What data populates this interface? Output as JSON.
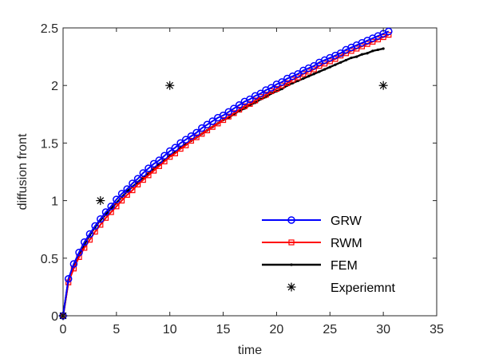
{
  "chart_data": {
    "type": "line",
    "xlabel": "time",
    "ylabel": "diffusion front",
    "xlim": [
      0,
      35
    ],
    "ylim": [
      0,
      2.5
    ],
    "xticks": [
      0,
      5,
      10,
      15,
      20,
      25,
      30,
      35
    ],
    "yticks": [
      0,
      0.5,
      1,
      1.5,
      2,
      2.5
    ],
    "xtick_labels": [
      "0",
      "5",
      "10",
      "15",
      "20",
      "25",
      "30",
      "35"
    ],
    "ytick_labels": [
      "0",
      "0.5",
      "1",
      "1.5",
      "2",
      "2.5"
    ],
    "grid": false,
    "legend_position": "bottom-right",
    "series": [
      {
        "name": "GRW",
        "color": "#0000ff",
        "marker": "circle",
        "line": true,
        "x": [
          0,
          0.5,
          1.0,
          1.5,
          2.0,
          2.5,
          3.0,
          3.5,
          4.0,
          4.5,
          5.0,
          5.5,
          6.0,
          6.5,
          7.0,
          7.5,
          8.0,
          8.5,
          9.0,
          9.5,
          10.0,
          10.5,
          11.0,
          11.5,
          12.0,
          12.5,
          13.0,
          13.5,
          14.0,
          14.5,
          15.0,
          15.5,
          16.0,
          16.5,
          17.0,
          17.5,
          18.0,
          18.5,
          19.0,
          19.5,
          20.0,
          20.5,
          21.0,
          21.5,
          22.0,
          22.5,
          23.0,
          23.5,
          24.0,
          24.5,
          25.0,
          25.5,
          26.0,
          26.5,
          27.0,
          27.5,
          28.0,
          28.5,
          29.0,
          29.5,
          30.0,
          30.5
        ],
        "y": [
          0,
          0.32,
          0.45,
          0.55,
          0.64,
          0.71,
          0.78,
          0.84,
          0.9,
          0.95,
          1.01,
          1.06,
          1.1,
          1.15,
          1.19,
          1.24,
          1.28,
          1.32,
          1.35,
          1.39,
          1.43,
          1.46,
          1.5,
          1.53,
          1.56,
          1.59,
          1.63,
          1.66,
          1.69,
          1.72,
          1.74,
          1.77,
          1.8,
          1.83,
          1.86,
          1.88,
          1.91,
          1.93,
          1.96,
          1.98,
          2.01,
          2.03,
          2.06,
          2.08,
          2.1,
          2.13,
          2.15,
          2.17,
          2.2,
          2.22,
          2.24,
          2.26,
          2.28,
          2.31,
          2.33,
          2.35,
          2.37,
          2.39,
          2.41,
          2.43,
          2.45,
          2.47
        ]
      },
      {
        "name": "RWM",
        "color": "#ff0000",
        "marker": "square",
        "line": true,
        "x": [
          0,
          0.5,
          1.0,
          1.5,
          2.0,
          2.5,
          3.0,
          3.5,
          4.0,
          4.5,
          5.0,
          5.5,
          6.0,
          6.5,
          7.0,
          7.5,
          8.0,
          8.5,
          9.0,
          9.5,
          10.0,
          10.5,
          11.0,
          11.5,
          12.0,
          12.5,
          13.0,
          13.5,
          14.0,
          14.5,
          15.0,
          15.5,
          16.0,
          16.5,
          17.0,
          17.5,
          18.0,
          18.5,
          19.0,
          19.5,
          20.0,
          20.5,
          21.0,
          21.5,
          22.0,
          22.5,
          23.0,
          23.5,
          24.0,
          24.5,
          25.0,
          25.5,
          26.0,
          26.5,
          27.0,
          27.5,
          28.0,
          28.5,
          29.0,
          29.5,
          30.0,
          30.5
        ],
        "y": [
          0,
          0.29,
          0.41,
          0.51,
          0.59,
          0.66,
          0.73,
          0.79,
          0.85,
          0.9,
          0.95,
          1.0,
          1.05,
          1.09,
          1.14,
          1.18,
          1.22,
          1.26,
          1.3,
          1.34,
          1.38,
          1.41,
          1.45,
          1.48,
          1.52,
          1.55,
          1.58,
          1.61,
          1.64,
          1.67,
          1.7,
          1.73,
          1.76,
          1.79,
          1.82,
          1.84,
          1.87,
          1.9,
          1.92,
          1.95,
          1.97,
          2.0,
          2.02,
          2.05,
          2.07,
          2.1,
          2.12,
          2.14,
          2.17,
          2.19,
          2.21,
          2.23,
          2.26,
          2.28,
          2.3,
          2.32,
          2.34,
          2.36,
          2.38,
          2.4,
          2.42,
          2.44
        ]
      },
      {
        "name": "FEM",
        "color": "#000000",
        "marker": "dot",
        "line": true,
        "x": [
          0,
          0.5,
          1.0,
          1.5,
          2.0,
          2.5,
          3.0,
          3.5,
          4.0,
          4.5,
          5.0,
          5.5,
          6.0,
          6.5,
          7.0,
          7.5,
          8.0,
          8.5,
          9.0,
          9.5,
          10.0,
          10.5,
          11.0,
          11.5,
          12.0,
          12.5,
          13.0,
          13.5,
          14.0,
          14.5,
          15.0,
          15.5,
          16.0,
          16.5,
          17.0,
          17.5,
          18.0,
          18.5,
          19.0,
          19.5,
          20.0,
          20.5,
          21.0,
          21.5,
          22.0,
          22.5,
          23.0,
          23.5,
          24.0,
          24.5,
          25.0,
          25.5,
          26.0,
          26.5,
          27.0,
          27.5,
          28.0,
          28.5,
          29.0,
          29.5,
          30.0
        ],
        "y": [
          0,
          0.3,
          0.43,
          0.53,
          0.62,
          0.7,
          0.77,
          0.83,
          0.88,
          0.93,
          0.98,
          1.03,
          1.08,
          1.12,
          1.16,
          1.2,
          1.24,
          1.28,
          1.32,
          1.35,
          1.39,
          1.42,
          1.46,
          1.49,
          1.52,
          1.55,
          1.58,
          1.61,
          1.64,
          1.67,
          1.7,
          1.72,
          1.75,
          1.78,
          1.8,
          1.83,
          1.85,
          1.88,
          1.9,
          1.93,
          1.95,
          1.97,
          2.0,
          2.02,
          2.04,
          2.06,
          2.08,
          2.1,
          2.12,
          2.14,
          2.16,
          2.18,
          2.2,
          2.22,
          2.24,
          2.25,
          2.27,
          2.28,
          2.3,
          2.31,
          2.32
        ]
      },
      {
        "name": "Experiemnt",
        "color": "#000000",
        "marker": "asterisk",
        "line": false,
        "x": [
          0,
          3.5,
          10,
          30
        ],
        "y": [
          0,
          1,
          2,
          2
        ]
      }
    ]
  }
}
